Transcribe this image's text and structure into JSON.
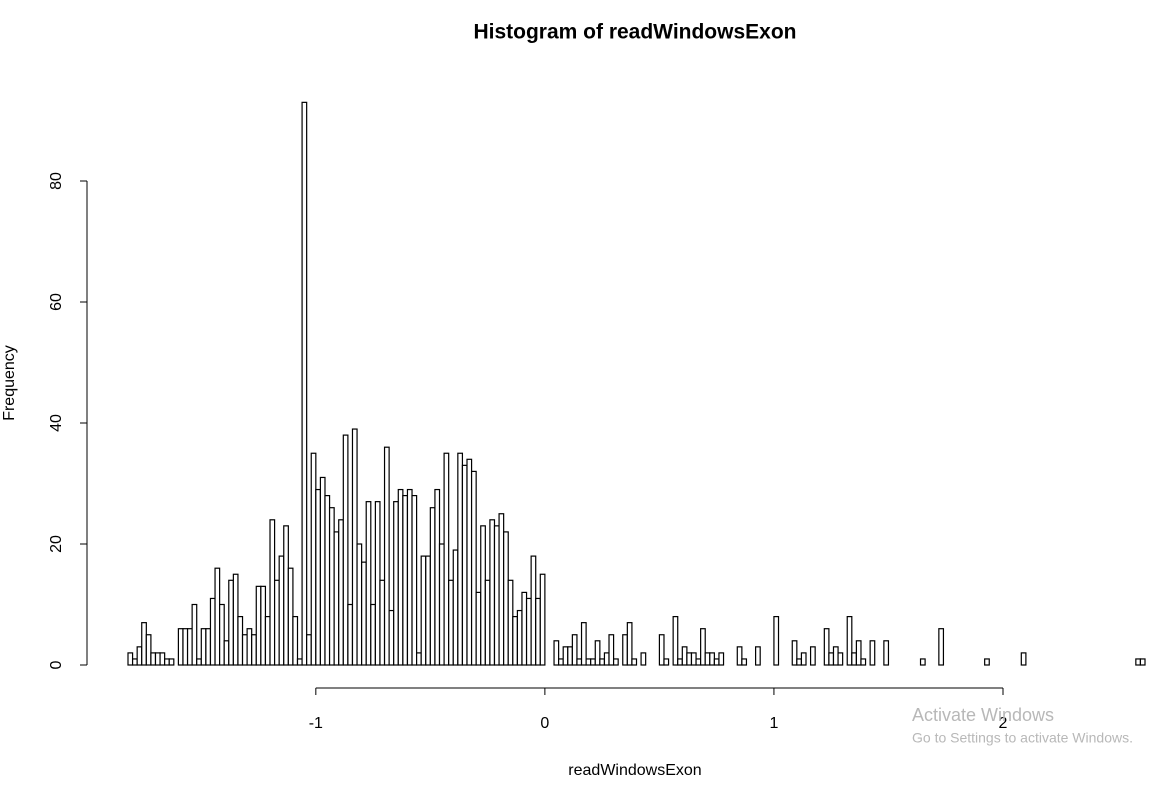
{
  "chart_data": {
    "type": "histogram",
    "title": "Histogram of readWindowsExon",
    "x_label": "readWindowsExon",
    "y_label": "Frequency",
    "bins": [
      -1.82,
      -1.8,
      -1.78,
      -1.76,
      -1.74,
      -1.72,
      -1.7,
      -1.68,
      -1.66,
      -1.64,
      -1.62,
      -1.6,
      -1.58,
      -1.56,
      -1.54,
      -1.52,
      -1.5,
      -1.48,
      -1.46,
      -1.44,
      -1.42,
      -1.4,
      -1.38,
      -1.36,
      -1.34,
      -1.32,
      -1.3,
      -1.28,
      -1.26,
      -1.24,
      -1.22,
      -1.2,
      -1.18,
      -1.16,
      -1.14,
      -1.12,
      -1.1,
      -1.08,
      -1.06,
      -1.04,
      -1.02,
      -1,
      -0.98,
      -0.96,
      -0.94,
      -0.92,
      -0.9,
      -0.88,
      -0.86,
      -0.84,
      -0.82,
      -0.8,
      -0.78,
      -0.76,
      -0.74,
      -0.72,
      -0.7,
      -0.68,
      -0.66,
      -0.64,
      -0.62,
      -0.6,
      -0.58,
      -0.56,
      -0.54,
      -0.52,
      -0.5,
      -0.48,
      -0.46,
      -0.44,
      -0.42,
      -0.4,
      -0.38,
      -0.36,
      -0.34,
      -0.32,
      -0.3,
      -0.28,
      -0.26,
      -0.24,
      -0.22,
      -0.2,
      -0.18,
      -0.16,
      -0.14,
      -0.12,
      -0.1,
      -0.08,
      -0.06,
      -0.04,
      -0.02,
      0,
      0.02,
      0.04,
      0.06,
      0.08,
      0.1,
      0.12,
      0.14,
      0.16,
      0.18,
      0.2,
      0.22,
      0.24,
      0.26,
      0.28,
      0.3,
      0.32,
      0.34,
      0.36,
      0.38,
      0.4,
      0.42,
      0.44,
      0.46,
      0.48,
      0.5,
      0.52,
      0.54,
      0.56,
      0.58,
      0.6,
      0.62,
      0.64,
      0.66,
      0.68,
      0.7,
      0.72,
      0.74,
      0.76,
      0.78,
      0.8,
      0.82,
      0.84,
      0.86,
      0.88,
      0.9,
      0.92,
      0.94,
      0.96,
      0.98,
      1,
      1.02,
      1.04,
      1.06,
      1.08,
      1.1,
      1.12,
      1.14,
      1.16,
      1.18,
      1.2,
      1.22,
      1.24,
      1.26,
      1.28,
      1.3,
      1.32,
      1.34,
      1.36,
      1.38,
      1.4,
      1.42,
      1.44,
      1.46,
      1.48,
      1.5,
      1.52,
      1.54,
      1.56,
      1.58,
      1.6,
      1.62,
      1.64,
      1.66,
      1.68,
      1.7,
      1.72,
      1.74,
      1.76,
      1.78,
      1.8,
      1.82,
      1.84,
      1.86,
      1.88,
      1.9,
      1.92,
      1.94,
      1.96,
      1.98,
      2,
      2.02,
      2.04,
      2.06,
      2.08,
      2.1,
      2.12,
      2.14,
      2.16,
      2.18,
      2.2,
      2.22,
      2.24,
      2.26,
      2.28,
      2.3,
      2.32,
      2.34,
      2.36,
      2.38,
      2.4,
      2.42,
      2.44,
      2.46,
      2.48,
      2.5,
      2.52,
      2.54,
      2.56,
      2.58,
      2.6,
      2.62
    ],
    "values": [
      2,
      1,
      3,
      7,
      5,
      2,
      2,
      2,
      1,
      1,
      0,
      6,
      6,
      6,
      10,
      1,
      6,
      6,
      11,
      16,
      10,
      4,
      14,
      15,
      8,
      5,
      6,
      5,
      13,
      13,
      8,
      24,
      14,
      18,
      23,
      16,
      8,
      1,
      93,
      5,
      35,
      29,
      31,
      28,
      26,
      22,
      24,
      38,
      10,
      39,
      20,
      17,
      27,
      10,
      27,
      14,
      36,
      9,
      27,
      29,
      28,
      29,
      28,
      2,
      18,
      18,
      26,
      29,
      20,
      35,
      14,
      19,
      35,
      33,
      34,
      32,
      12,
      23,
      14,
      24,
      23,
      25,
      22,
      14,
      8,
      9,
      12,
      11,
      18,
      11,
      15,
      0,
      0,
      4,
      1,
      3,
      3,
      5,
      1,
      7,
      1,
      1,
      4,
      1,
      2,
      5,
      1,
      0,
      5,
      7,
      1,
      0,
      2,
      0,
      0,
      0,
      5,
      1,
      0,
      8,
      1,
      3,
      2,
      2,
      1,
      6,
      2,
      2,
      1,
      2,
      0,
      0,
      0,
      3,
      1,
      0,
      0,
      3,
      0,
      0,
      0,
      8,
      0,
      0,
      0,
      4,
      1,
      2,
      0,
      3,
      0,
      0,
      6,
      2,
      3,
      2,
      0,
      8,
      2,
      4,
      1,
      0,
      4,
      0,
      0,
      4,
      0,
      0,
      0,
      0,
      0,
      0,
      0,
      1,
      0,
      0,
      0,
      6,
      0,
      0,
      0,
      0,
      0,
      0,
      0,
      0,
      0,
      1,
      0,
      0,
      0,
      0,
      0,
      0,
      0,
      2,
      0,
      0,
      0,
      0,
      0,
      0,
      0,
      0,
      0,
      0,
      0,
      0,
      0,
      0,
      0,
      0,
      0,
      0,
      0,
      0,
      0,
      0,
      0,
      0,
      1,
      1
    ],
    "color": "#ffffff",
    "edge_color": "#000000",
    "xlim": [
      -1.82,
      2.62
    ],
    "ylim": [
      0,
      100
    ],
    "xticks": [
      -1,
      0,
      1,
      2
    ],
    "yticks": [
      0,
      20,
      40,
      60,
      80
    ],
    "grid": false
  },
  "watermark": {
    "line1": "Activate Windows",
    "line2": "Go to Settings to activate Windows."
  }
}
